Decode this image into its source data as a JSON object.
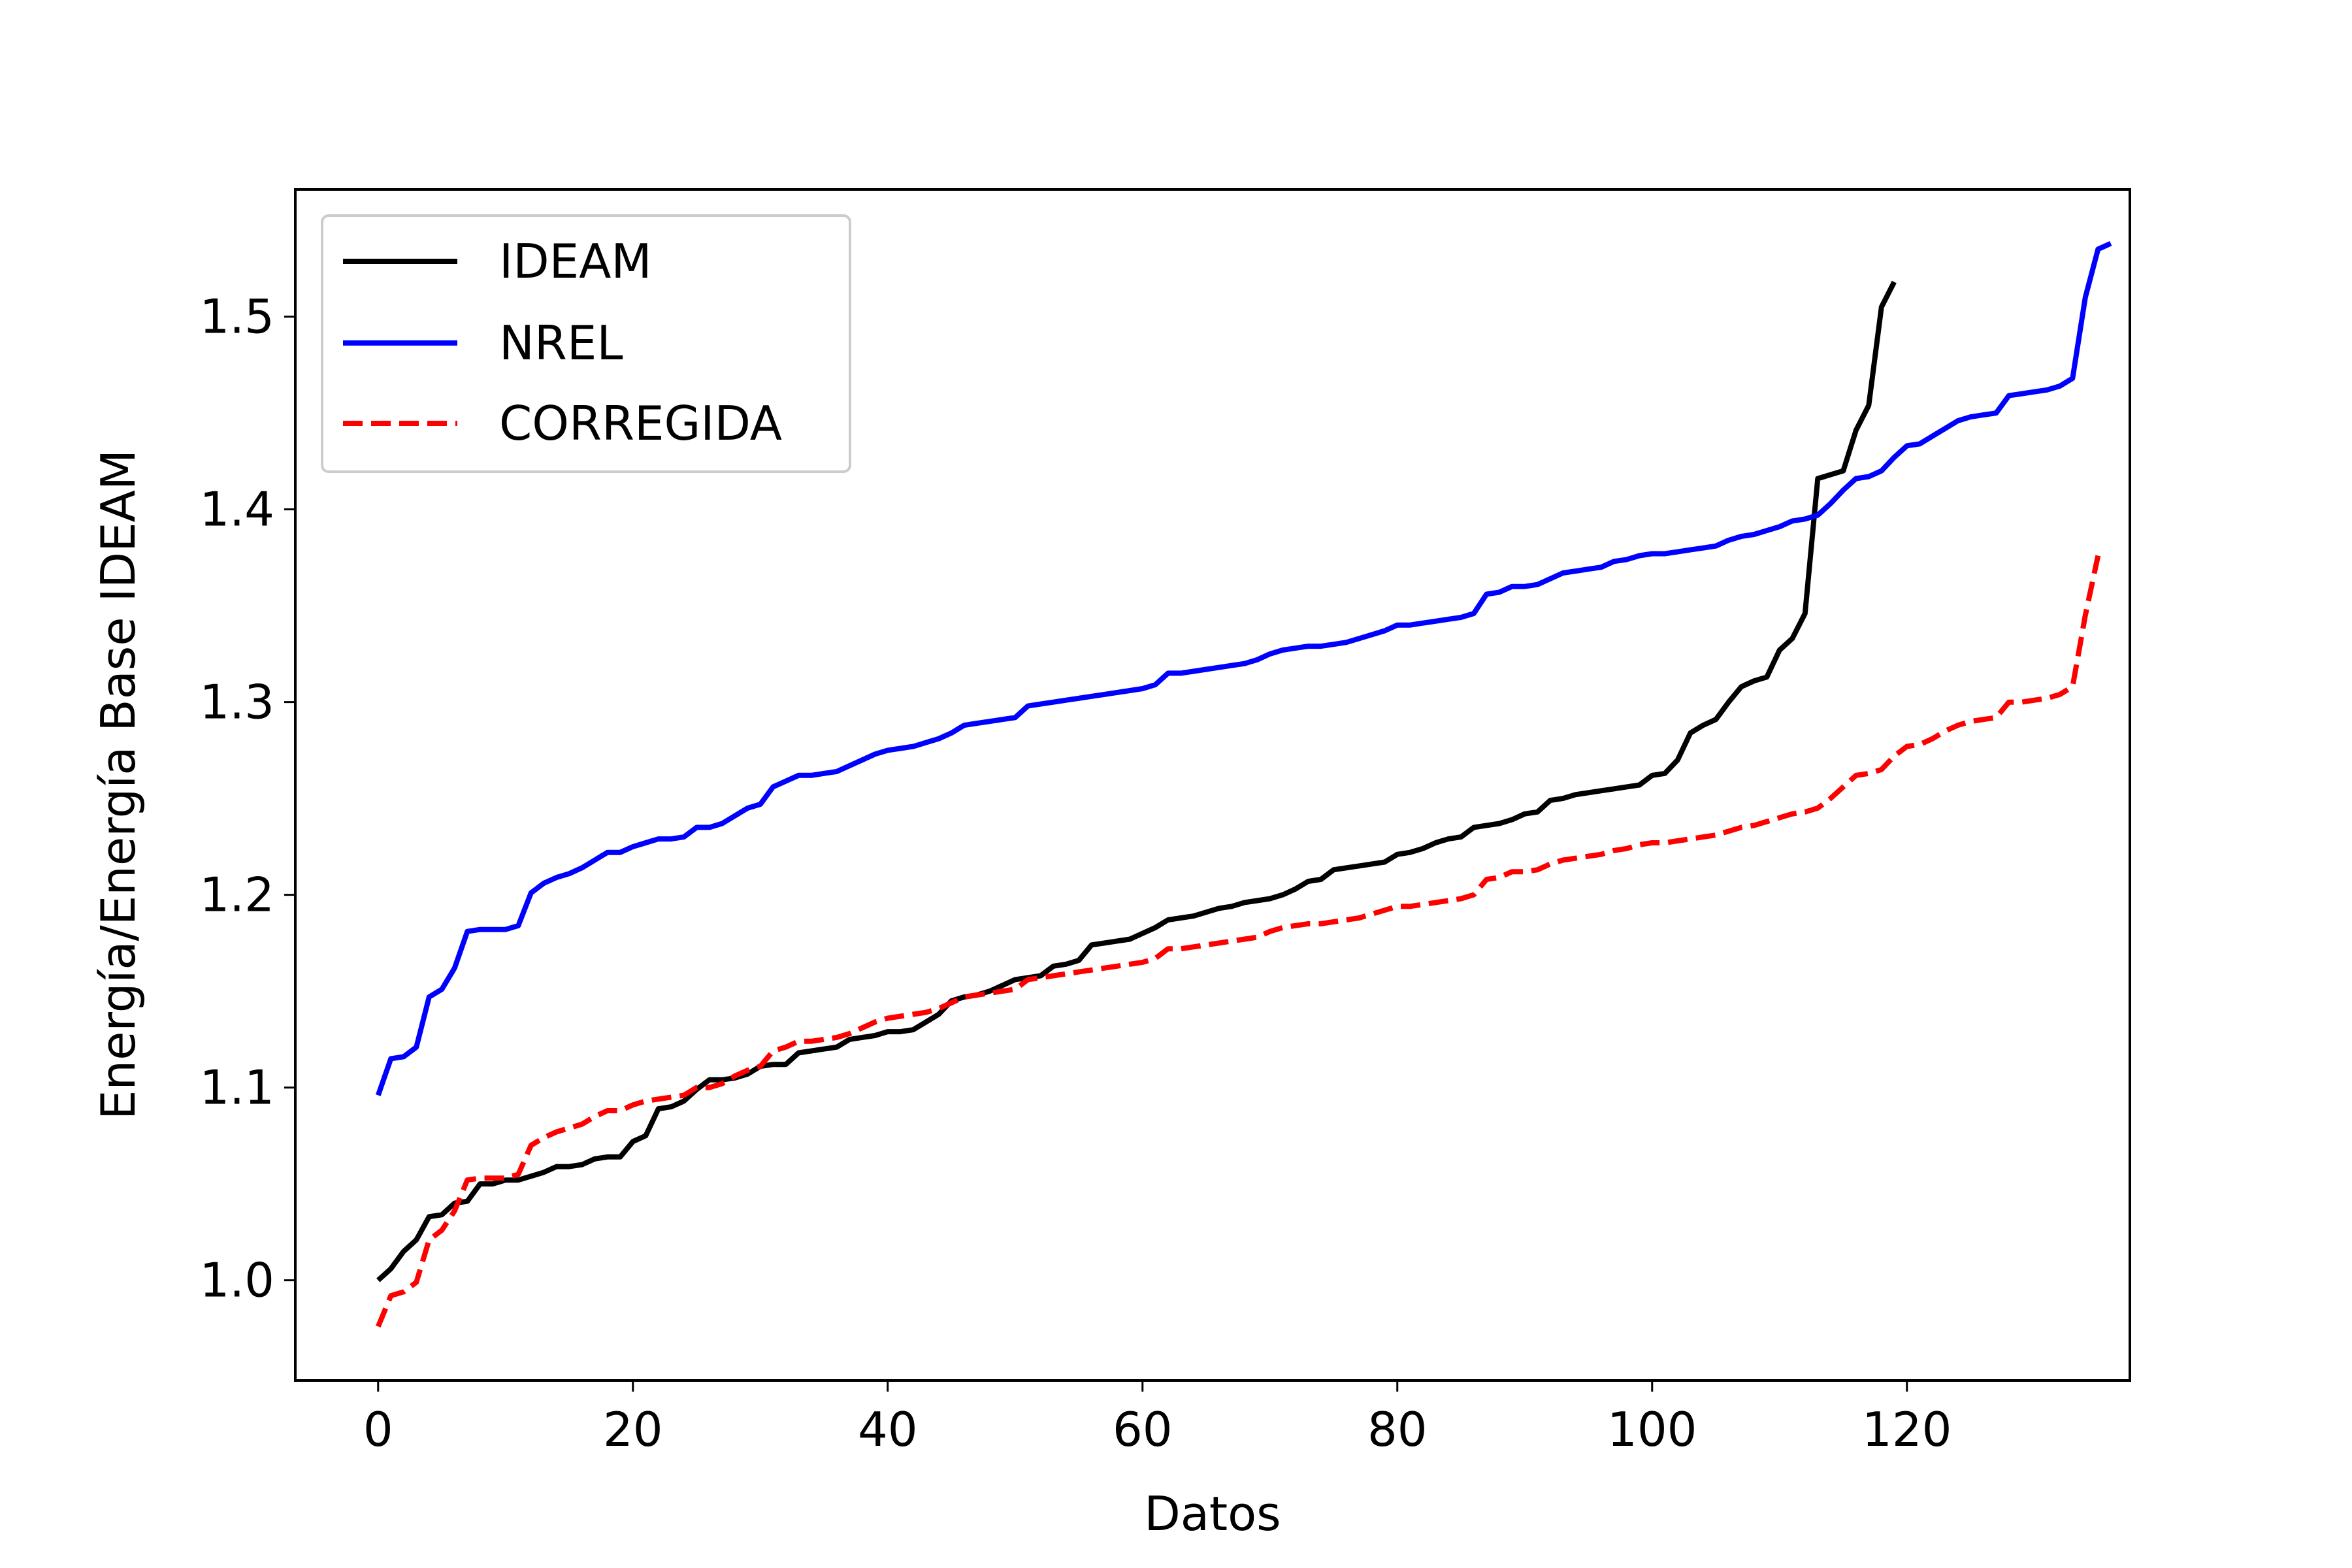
{
  "chart_data": {
    "type": "line",
    "xlabel": "Datos",
    "ylabel": "Energía/Energía Base IDEAM",
    "xlim": [
      -6.5,
      137.5
    ],
    "ylim": [
      0.948,
      1.566
    ],
    "xticks": [
      0,
      20,
      40,
      60,
      80,
      100,
      120
    ],
    "xtick_labels": [
      "0",
      "20",
      "40",
      "60",
      "80",
      "100",
      "120"
    ],
    "yticks": [
      1.0,
      1.1,
      1.2,
      1.3,
      1.4,
      1.5
    ],
    "ytick_labels": [
      "1.0",
      "1.1",
      "1.2",
      "1.3",
      "1.4",
      "1.5"
    ],
    "grid": false,
    "legend_position": "upper-left",
    "series": [
      {
        "name": "IDEAM",
        "color": "#000000",
        "style": "solid",
        "x_start": 0,
        "values": [
          1.0,
          1.006,
          1.015,
          1.021,
          1.033,
          1.034,
          1.04,
          1.041,
          1.05,
          1.05,
          1.052,
          1.052,
          1.054,
          1.056,
          1.059,
          1.059,
          1.06,
          1.063,
          1.064,
          1.064,
          1.072,
          1.075,
          1.089,
          1.09,
          1.093,
          1.099,
          1.104,
          1.104,
          1.105,
          1.107,
          1.111,
          1.112,
          1.112,
          1.118,
          1.119,
          1.12,
          1.121,
          1.125,
          1.126,
          1.127,
          1.129,
          1.129,
          1.13,
          1.134,
          1.138,
          1.145,
          1.147,
          1.148,
          1.15,
          1.153,
          1.156,
          1.157,
          1.158,
          1.163,
          1.164,
          1.166,
          1.174,
          1.175,
          1.176,
          1.177,
          1.18,
          1.183,
          1.187,
          1.188,
          1.189,
          1.191,
          1.193,
          1.194,
          1.196,
          1.197,
          1.198,
          1.2,
          1.203,
          1.207,
          1.208,
          1.213,
          1.214,
          1.215,
          1.216,
          1.217,
          1.221,
          1.222,
          1.224,
          1.227,
          1.229,
          1.23,
          1.235,
          1.236,
          1.237,
          1.239,
          1.242,
          1.243,
          1.249,
          1.25,
          1.252,
          1.253,
          1.254,
          1.255,
          1.256,
          1.257,
          1.262,
          1.263,
          1.27,
          1.284,
          1.288,
          1.291,
          1.3,
          1.308,
          1.311,
          1.313,
          1.327,
          1.333,
          1.346,
          1.416,
          1.418,
          1.42,
          1.441,
          1.454,
          1.505,
          1.518
        ]
      },
      {
        "name": "NREL",
        "color": "#0000ff",
        "style": "solid",
        "x_start": 0,
        "values": [
          1.096,
          1.115,
          1.116,
          1.121,
          1.147,
          1.151,
          1.162,
          1.181,
          1.182,
          1.182,
          1.182,
          1.184,
          1.201,
          1.206,
          1.209,
          1.211,
          1.214,
          1.218,
          1.222,
          1.222,
          1.225,
          1.227,
          1.229,
          1.229,
          1.23,
          1.235,
          1.235,
          1.237,
          1.241,
          1.245,
          1.247,
          1.256,
          1.259,
          1.262,
          1.262,
          1.263,
          1.264,
          1.267,
          1.27,
          1.273,
          1.275,
          1.276,
          1.277,
          1.279,
          1.281,
          1.284,
          1.288,
          1.289,
          1.29,
          1.291,
          1.292,
          1.298,
          1.299,
          1.3,
          1.301,
          1.302,
          1.303,
          1.304,
          1.305,
          1.306,
          1.307,
          1.309,
          1.315,
          1.315,
          1.316,
          1.317,
          1.318,
          1.319,
          1.32,
          1.322,
          1.325,
          1.327,
          1.328,
          1.329,
          1.329,
          1.33,
          1.331,
          1.333,
          1.335,
          1.337,
          1.34,
          1.34,
          1.341,
          1.342,
          1.343,
          1.344,
          1.346,
          1.356,
          1.357,
          1.36,
          1.36,
          1.361,
          1.364,
          1.367,
          1.368,
          1.369,
          1.37,
          1.373,
          1.374,
          1.376,
          1.377,
          1.377,
          1.378,
          1.379,
          1.38,
          1.381,
          1.384,
          1.386,
          1.387,
          1.389,
          1.391,
          1.394,
          1.395,
          1.397,
          1.403,
          1.41,
          1.416,
          1.417,
          1.42,
          1.427,
          1.433,
          1.434,
          1.438,
          1.442,
          1.446,
          1.448,
          1.449,
          1.45,
          1.459,
          1.46,
          1.461,
          1.462,
          1.464,
          1.468,
          1.51,
          1.535,
          1.538
        ]
      },
      {
        "name": "CORREGIDA",
        "color": "#ff0000",
        "style": "dashed",
        "x_start": 0,
        "values": [
          0.976,
          0.992,
          0.994,
          0.999,
          1.021,
          1.026,
          1.036,
          1.052,
          1.053,
          1.053,
          1.053,
          1.055,
          1.07,
          1.074,
          1.077,
          1.079,
          1.081,
          1.085,
          1.088,
          1.088,
          1.091,
          1.093,
          1.094,
          1.095,
          1.096,
          1.1,
          1.1,
          1.102,
          1.106,
          1.109,
          1.111,
          1.119,
          1.121,
          1.124,
          1.124,
          1.125,
          1.126,
          1.128,
          1.131,
          1.134,
          1.136,
          1.137,
          1.138,
          1.139,
          1.141,
          1.144,
          1.147,
          1.148,
          1.149,
          1.15,
          1.151,
          1.156,
          1.157,
          1.158,
          1.159,
          1.16,
          1.161,
          1.162,
          1.163,
          1.164,
          1.165,
          1.167,
          1.172,
          1.172,
          1.173,
          1.174,
          1.175,
          1.176,
          1.177,
          1.178,
          1.181,
          1.183,
          1.184,
          1.185,
          1.185,
          1.186,
          1.187,
          1.188,
          1.19,
          1.192,
          1.194,
          1.194,
          1.195,
          1.196,
          1.197,
          1.198,
          1.2,
          1.208,
          1.209,
          1.212,
          1.212,
          1.213,
          1.216,
          1.218,
          1.219,
          1.22,
          1.221,
          1.223,
          1.224,
          1.226,
          1.227,
          1.227,
          1.228,
          1.229,
          1.23,
          1.231,
          1.233,
          1.235,
          1.236,
          1.238,
          1.24,
          1.242,
          1.243,
          1.245,
          1.25,
          1.256,
          1.262,
          1.263,
          1.265,
          1.272,
          1.277,
          1.278,
          1.281,
          1.285,
          1.288,
          1.29,
          1.291,
          1.292,
          1.3,
          1.3,
          1.301,
          1.302,
          1.304,
          1.308,
          1.345,
          1.376
        ]
      }
    ]
  }
}
